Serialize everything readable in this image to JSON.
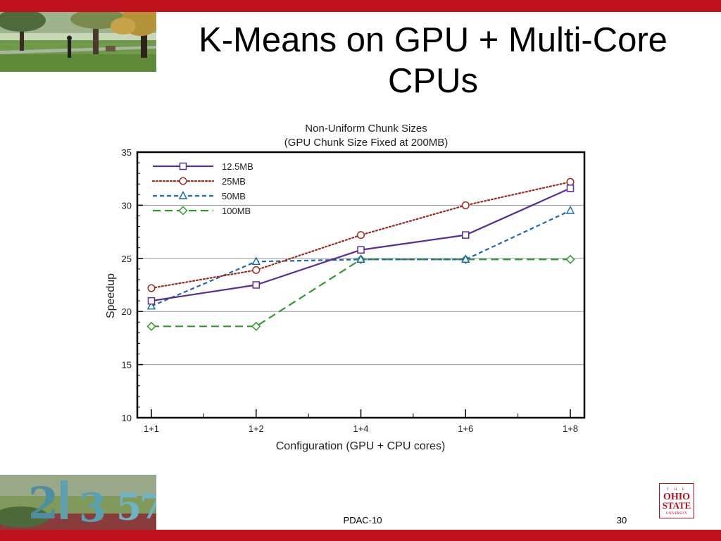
{
  "slide": {
    "title": "K-Means on GPU + Multi-Core CPUs",
    "footer": "PDAC-10",
    "page_number": "30",
    "logo_text": [
      "THE",
      "OHIO",
      "STATE",
      "UNIVERSITY"
    ]
  },
  "colors": {
    "bar": "#c1121c",
    "s1": "#5a2d91",
    "s2": "#9b2a1f",
    "s3": "#1f6aa5",
    "s4": "#2f9a2f"
  },
  "chart_data": {
    "type": "line",
    "title": "Non-Uniform Chunk Sizes",
    "subtitle": "(GPU Chunk Size Fixed at 200MB)",
    "xlabel": "Configuration (GPU + CPU cores)",
    "ylabel": "Speedup",
    "categories": [
      "1+1",
      "1+2",
      "1+4",
      "1+6",
      "1+8"
    ],
    "ylim": [
      10,
      35
    ],
    "yticks": [
      "10",
      "15",
      "20",
      "25",
      "30",
      "35"
    ],
    "grid": "horizontal",
    "legend_position": "top-left",
    "series": [
      {
        "name": "12.5MB",
        "values": [
          21.0,
          22.5,
          25.8,
          27.2,
          31.6
        ],
        "color": "#5a2d91",
        "dash": "solid",
        "marker": "square"
      },
      {
        "name": "25MB",
        "values": [
          22.2,
          23.9,
          27.2,
          30.0,
          32.2
        ],
        "color": "#9b2a1f",
        "dash": "dotted",
        "marker": "circle"
      },
      {
        "name": "50MB",
        "values": [
          20.5,
          24.7,
          24.9,
          24.9,
          29.5
        ],
        "color": "#1f6aa5",
        "dash": "dashed",
        "marker": "triangle"
      },
      {
        "name": "100MB",
        "values": [
          18.6,
          18.6,
          24.9,
          24.9,
          24.9
        ],
        "color": "#2f9a2f",
        "dash": "longdash",
        "marker": "diamond"
      }
    ]
  }
}
